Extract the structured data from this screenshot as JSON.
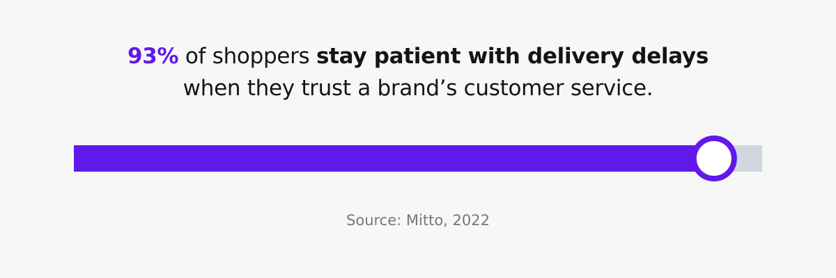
{
  "chart_data": {
    "type": "progress",
    "values": [
      93
    ],
    "value_labels": [
      "93%"
    ],
    "xlim": [
      0,
      100
    ],
    "title_parts": [
      "of shoppers",
      "stay patient with delivery delays",
      "when they trust a brand’s customer service."
    ],
    "source": "Source: Mitto, 2022",
    "color": "#6119e9",
    "track_color": "#d1d6df"
  }
}
